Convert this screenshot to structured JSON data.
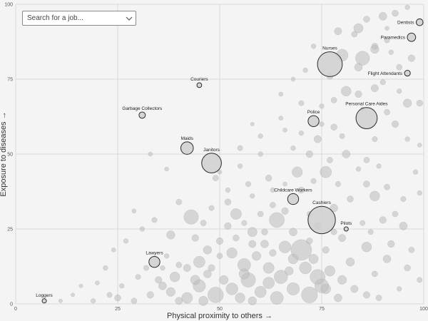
{
  "search": {
    "placeholder": "Search for a job..."
  },
  "chart_data": {
    "type": "scatter",
    "xlabel": "Physical proximity to others →",
    "ylabel": "Exposure to diseases →",
    "xlim": [
      0,
      100
    ],
    "ylim": [
      0,
      100
    ],
    "x_ticks": [
      0,
      25,
      50,
      75,
      100
    ],
    "y_ticks": [
      0,
      25,
      50,
      75,
      100
    ],
    "grid": true,
    "labeled_points": [
      {
        "label": "Dentists",
        "x": 99,
        "y": 94,
        "size": 1.0
      },
      {
        "label": "Paramedics",
        "x": 97,
        "y": 89,
        "size": 1.3
      },
      {
        "label": "Nurses",
        "x": 77,
        "y": 80,
        "size": 4.5
      },
      {
        "label": "Flight Attendants",
        "x": 96,
        "y": 77,
        "size": 0.8
      },
      {
        "label": "Couriers",
        "x": 45,
        "y": 73,
        "size": 0.6
      },
      {
        "label": "Personal Care Aides",
        "x": 86,
        "y": 62,
        "size": 3.8
      },
      {
        "label": "Garbage Collectors",
        "x": 31,
        "y": 63,
        "size": 0.9
      },
      {
        "label": "Police",
        "x": 73,
        "y": 61,
        "size": 1.8
      },
      {
        "label": "Maids",
        "x": 42,
        "y": 52,
        "size": 2.1
      },
      {
        "label": "Janitors",
        "x": 48,
        "y": 47,
        "size": 3.5
      },
      {
        "label": "Childcare Workers",
        "x": 68,
        "y": 35,
        "size": 1.8
      },
      {
        "label": "Cashiers",
        "x": 75,
        "y": 28,
        "size": 5.0
      },
      {
        "label": "Pilots",
        "x": 81,
        "y": 25,
        "size": 0.5
      },
      {
        "label": "Lawyers",
        "x": 34,
        "y": 14,
        "size": 1.8
      },
      {
        "label": "Loggers",
        "x": 7,
        "y": 1,
        "size": 0.5
      }
    ],
    "background_points": [
      [
        96,
        99,
        0.6
      ],
      [
        93,
        97,
        0.9
      ],
      [
        90,
        96,
        1.2
      ],
      [
        86,
        95,
        0.9
      ],
      [
        84,
        92,
        1.5
      ],
      [
        91,
        88,
        0.7
      ],
      [
        88,
        86,
        0.9
      ],
      [
        92,
        84,
        0.6
      ],
      [
        83,
        90,
        0.8
      ],
      [
        79,
        91,
        1.1
      ],
      [
        80,
        83,
        2.0
      ],
      [
        85,
        82,
        2.4
      ],
      [
        88,
        85,
        1.3
      ],
      [
        97,
        82,
        1.0
      ],
      [
        94,
        79,
        0.8
      ],
      [
        84,
        79,
        1.2
      ],
      [
        77,
        76,
        0.9
      ],
      [
        71,
        78,
        0.6
      ],
      [
        68,
        75,
        0.5
      ],
      [
        90,
        74,
        0.7
      ],
      [
        88,
        72,
        1.1
      ],
      [
        81,
        71,
        1.6
      ],
      [
        84,
        70,
        1.0
      ],
      [
        96,
        67,
        1.3
      ],
      [
        99,
        67,
        0.9
      ],
      [
        78,
        68,
        0.8
      ],
      [
        75,
        66,
        0.6
      ],
      [
        70,
        67,
        0.7
      ],
      [
        65,
        70,
        0.5
      ],
      [
        91,
        64,
        0.8
      ],
      [
        93,
        60,
        1.0
      ],
      [
        78,
        59,
        0.9
      ],
      [
        80,
        56,
        0.7
      ],
      [
        74,
        55,
        1.1
      ],
      [
        70,
        57,
        0.6
      ],
      [
        65,
        62,
        0.5
      ],
      [
        60,
        56,
        0.6
      ],
      [
        55,
        52,
        0.7
      ],
      [
        68,
        52,
        0.6
      ],
      [
        72,
        50,
        1.0
      ],
      [
        81,
        50,
        1.2
      ],
      [
        86,
        48,
        0.8
      ],
      [
        89,
        46,
        0.6
      ],
      [
        76,
        44,
        1.9
      ],
      [
        69,
        44,
        1.7
      ],
      [
        62,
        42,
        0.9
      ],
      [
        57,
        40,
        0.7
      ],
      [
        52,
        38,
        0.6
      ],
      [
        49,
        42,
        0.8
      ],
      [
        58,
        36,
        0.6
      ],
      [
        63,
        33,
        0.8
      ],
      [
        66,
        31,
        1.0
      ],
      [
        72,
        30,
        0.7
      ],
      [
        78,
        32,
        1.2
      ],
      [
        82,
        35,
        0.9
      ],
      [
        88,
        36,
        1.6
      ],
      [
        93,
        30,
        0.8
      ],
      [
        95,
        26,
        1.2
      ],
      [
        99,
        37,
        0.6
      ],
      [
        85,
        27,
        0.7
      ],
      [
        90,
        28,
        1.0
      ],
      [
        80,
        22,
        1.1
      ],
      [
        86,
        19,
        1.6
      ],
      [
        91,
        15,
        1.2
      ],
      [
        96,
        12,
        0.9
      ],
      [
        99,
        8,
        0.7
      ],
      [
        94,
        5,
        0.6
      ],
      [
        88,
        10,
        0.8
      ],
      [
        82,
        14,
        1.3
      ],
      [
        76,
        18,
        1.0
      ],
      [
        72,
        21,
        0.9
      ],
      [
        68,
        24,
        1.2
      ],
      [
        64,
        28,
        2.6
      ],
      [
        58,
        24,
        1.5
      ],
      [
        54,
        30,
        1.8
      ],
      [
        52,
        26,
        1.0
      ],
      [
        48,
        32,
        0.7
      ],
      [
        43,
        29,
        2.5
      ],
      [
        40,
        34,
        0.8
      ],
      [
        38,
        23,
        1.3
      ],
      [
        34,
        28,
        0.7
      ],
      [
        31,
        25,
        0.6
      ],
      [
        29,
        31,
        0.5
      ],
      [
        27,
        21,
        0.6
      ],
      [
        24,
        18,
        0.5
      ],
      [
        22,
        12,
        0.6
      ],
      [
        20,
        7,
        0.5
      ],
      [
        25,
        2,
        0.9
      ],
      [
        29,
        1,
        0.8
      ],
      [
        33,
        3,
        1.0
      ],
      [
        36,
        6,
        1.2
      ],
      [
        39,
        9,
        1.6
      ],
      [
        42,
        12,
        1.1
      ],
      [
        45,
        14,
        1.9
      ],
      [
        47,
        18,
        1.3
      ],
      [
        50,
        21,
        1.0
      ],
      [
        53,
        17,
        1.7
      ],
      [
        56,
        13,
        2.2
      ],
      [
        59,
        16,
        1.4
      ],
      [
        62,
        12,
        1.8
      ],
      [
        65,
        9,
        2.3
      ],
      [
        68,
        15,
        1.6
      ],
      [
        71,
        12,
        2.0
      ],
      [
        74,
        9,
        2.6
      ],
      [
        77,
        11,
        1.7
      ],
      [
        80,
        8,
        1.4
      ],
      [
        83,
        5,
        1.1
      ],
      [
        86,
        3,
        1.0
      ],
      [
        89,
        2,
        0.8
      ],
      [
        70,
        18,
        3.7
      ],
      [
        66,
        19,
        2.0
      ],
      [
        61,
        20,
        1.2
      ],
      [
        57,
        8,
        2.5
      ],
      [
        53,
        5,
        2.0
      ],
      [
        49,
        3,
        2.7
      ],
      [
        45,
        6,
        2.1
      ],
      [
        42,
        2,
        1.8
      ],
      [
        38,
        4,
        1.4
      ],
      [
        35,
        8,
        1.0
      ],
      [
        32,
        12,
        0.7
      ],
      [
        51,
        8,
        1.4
      ],
      [
        55,
        2,
        1.6
      ],
      [
        60,
        4,
        1.9
      ],
      [
        64,
        2,
        2.2
      ],
      [
        68,
        5,
        2.1
      ],
      [
        72,
        3,
        2.8
      ],
      [
        76,
        5,
        1.6
      ],
      [
        79,
        2,
        1.2
      ],
      [
        47,
        10,
        1.2
      ],
      [
        44,
        8,
        1.5
      ],
      [
        40,
        13,
        0.8
      ],
      [
        37,
        16,
        0.6
      ],
      [
        56,
        10,
        1.7
      ],
      [
        62,
        7,
        1.9
      ],
      [
        67,
        11,
        1.3
      ],
      [
        73,
        15,
        1.5
      ],
      [
        75,
        6,
        2.4
      ],
      [
        58,
        1,
        1.3
      ],
      [
        46,
        1,
        1.5
      ],
      [
        40,
        1,
        1.1
      ],
      [
        60,
        30,
        0.8
      ],
      [
        63,
        38,
        0.6
      ],
      [
        66,
        40,
        0.5
      ],
      [
        70,
        38,
        0.9
      ],
      [
        73,
        41,
        0.7
      ],
      [
        55,
        46,
        0.6
      ],
      [
        50,
        44,
        0.5
      ],
      [
        60,
        50,
        0.6
      ],
      [
        33,
        50,
        0.5
      ],
      [
        37,
        45,
        0.5
      ],
      [
        52,
        34,
        0.9
      ],
      [
        46,
        27,
        0.8
      ],
      [
        44,
        22,
        1.0
      ],
      [
        56,
        27,
        0.7
      ],
      [
        61,
        24,
        0.9
      ],
      [
        74,
        26,
        1.0
      ],
      [
        78,
        24,
        0.8
      ],
      [
        87,
        24,
        0.7
      ],
      [
        98,
        44,
        0.6
      ],
      [
        97,
        18,
        0.8
      ],
      [
        92,
        20,
        1.0
      ],
      [
        84,
        45,
        0.6
      ],
      [
        77,
        48,
        0.8
      ],
      [
        79,
        40,
        0.7
      ],
      [
        86,
        40,
        0.9
      ],
      [
        91,
        39,
        0.8
      ],
      [
        95,
        35,
        0.7
      ],
      [
        63,
        17,
        1.0
      ],
      [
        58,
        20,
        1.1
      ],
      [
        54,
        22,
        0.9
      ],
      [
        50,
        16,
        0.8
      ],
      [
        48,
        12,
        1.0
      ],
      [
        36,
        12,
        0.6
      ],
      [
        30,
        9,
        0.7
      ],
      [
        26,
        6,
        0.6
      ],
      [
        23,
        3,
        0.7
      ],
      [
        19,
        1,
        0.6
      ],
      [
        14,
        3,
        0.4
      ],
      [
        11,
        1,
        0.4
      ],
      [
        16,
        6,
        0.4
      ],
      [
        88,
        55,
        0.7
      ],
      [
        75,
        60,
        0.6
      ],
      [
        66,
        58,
        0.5
      ],
      [
        58,
        60,
        0.4
      ],
      [
        85,
        65,
        0.5
      ],
      [
        94,
        71,
        0.6
      ],
      [
        73,
        86,
        0.6
      ],
      [
        91,
        92,
        0.5
      ],
      [
        99,
        53,
        0.5
      ],
      [
        96,
        55,
        0.6
      ]
    ]
  }
}
